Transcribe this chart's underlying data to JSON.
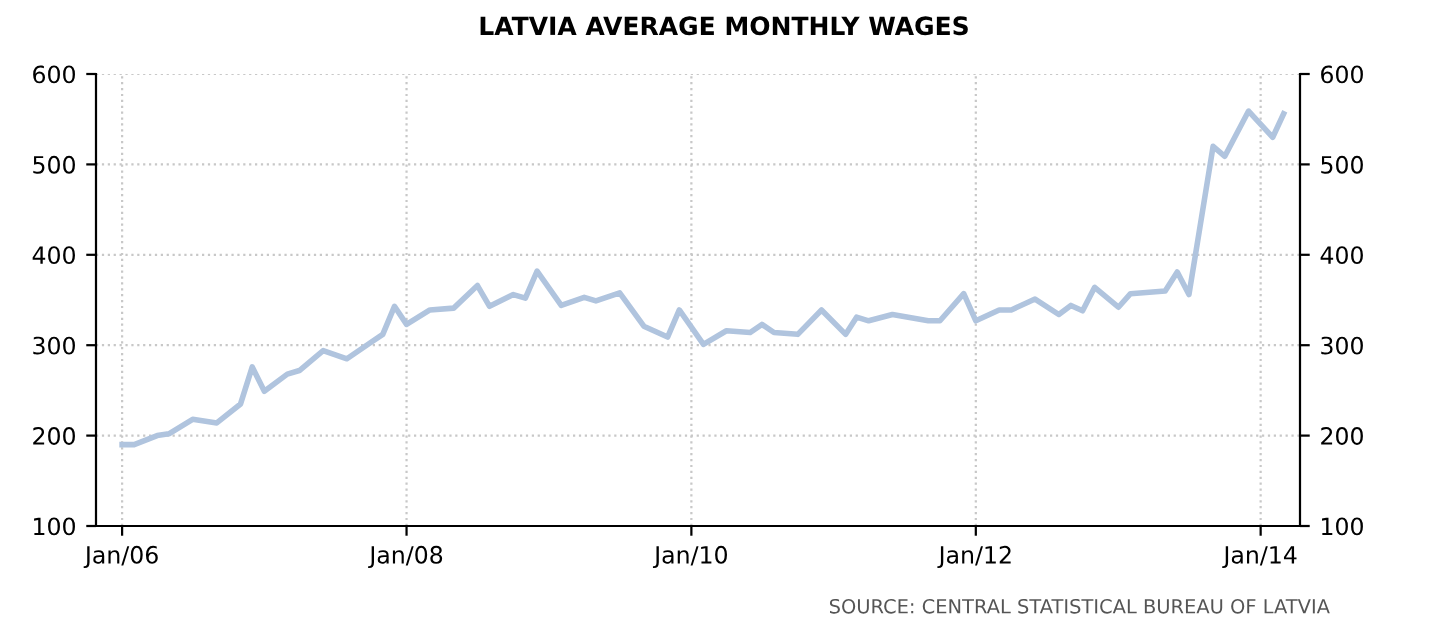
{
  "chart_data": {
    "type": "line",
    "title": "LATVIA AVERAGE MONTHLY WAGES",
    "x": [
      "2006-01",
      "2006-02",
      "2006-04",
      "2006-05",
      "2006-07",
      "2006-09",
      "2006-11",
      "2006-12",
      "2007-01",
      "2007-03",
      "2007-04",
      "2007-06",
      "2007-08",
      "2007-10",
      "2007-11",
      "2007-12",
      "2008-01",
      "2008-03",
      "2008-05",
      "2008-07",
      "2008-08",
      "2008-10",
      "2008-11",
      "2008-12",
      "2009-02",
      "2009-04",
      "2009-05",
      "2009-07",
      "2009-09",
      "2009-11",
      "2009-12",
      "2010-02",
      "2010-04",
      "2010-06",
      "2010-07",
      "2010-08",
      "2010-10",
      "2010-12",
      "2011-02",
      "2011-03",
      "2011-04",
      "2011-06",
      "2011-09",
      "2011-10",
      "2011-12",
      "2012-01",
      "2012-03",
      "2012-04",
      "2012-06",
      "2012-08",
      "2012-09",
      "2012-10",
      "2012-11",
      "2013-01",
      "2013-02",
      "2013-05",
      "2013-06",
      "2013-07",
      "2013-09",
      "2013-10",
      "2013-12",
      "2014-02",
      "2014-03"
    ],
    "series": [
      {
        "color": "#b0c4de",
        "values": [
          190,
          190,
          200,
          202,
          218,
          214,
          235,
          276,
          249,
          268,
          272,
          294,
          285,
          303,
          312,
          343,
          323,
          339,
          341,
          366,
          343,
          356,
          352,
          382,
          344,
          353,
          349,
          358,
          321,
          309,
          339,
          301,
          316,
          314,
          323,
          314,
          312,
          339,
          312,
          331,
          327,
          334,
          327,
          327,
          357,
          327,
          339,
          339,
          351,
          334,
          344,
          338,
          364,
          342,
          357,
          360,
          381,
          356,
          520,
          509,
          559,
          530,
          556
        ]
      }
    ],
    "xlim": [
      "2005-10-26",
      "2014-04-12"
    ],
    "xticks": [
      {
        "value": "2006-01",
        "label": "Jan/06"
      },
      {
        "value": "2008-01",
        "label": "Jan/08"
      },
      {
        "value": "2010-01",
        "label": "Jan/10"
      },
      {
        "value": "2012-01",
        "label": "Jan/12"
      },
      {
        "value": "2014-01",
        "label": "Jan/14"
      }
    ],
    "ylim": [
      100,
      600
    ],
    "yticks": [
      100,
      200,
      300,
      400,
      500,
      600
    ],
    "y2lim": [
      100,
      600
    ],
    "y2ticks": [
      100,
      200,
      300,
      400,
      500,
      600
    ],
    "grid": true,
    "line_style": "solid",
    "marker": "none",
    "annotations": [
      "SOURCE: CENTRAL STATISTICAL BUREAU OF LATVIA"
    ]
  }
}
